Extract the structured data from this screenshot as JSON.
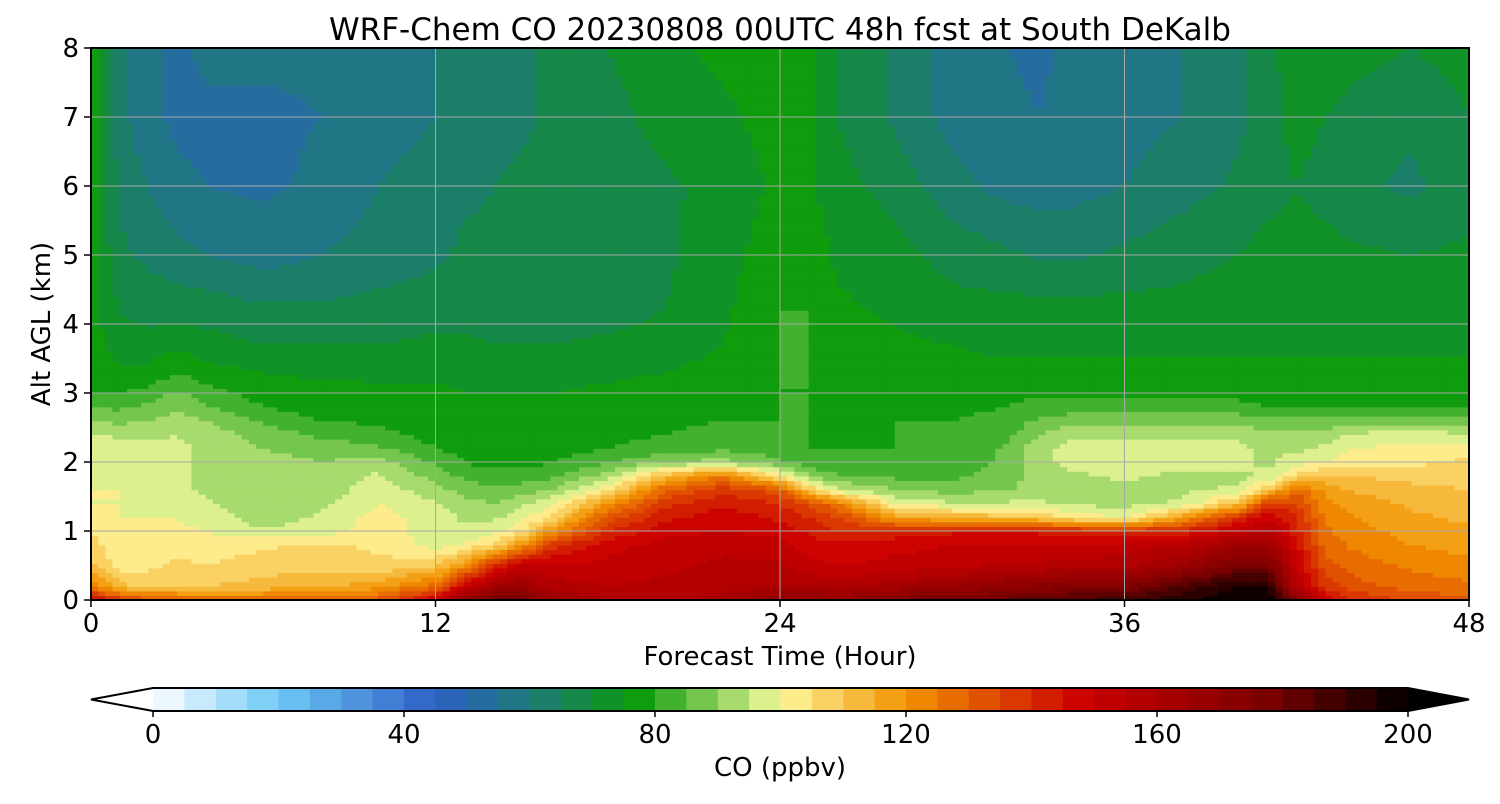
{
  "chart_data": {
    "type": "heatmap",
    "title": "WRF-Chem CO  20230808 00UTC 48h fcst at South DeKalb",
    "xlabel": "Forecast Time (Hour)",
    "ylabel": "Alt AGL (km)",
    "xlim": [
      0,
      48
    ],
    "ylim": [
      0,
      8
    ],
    "xticks": [
      "0",
      "12",
      "24",
      "36",
      "48"
    ],
    "yticks": [
      "0",
      "1",
      "2",
      "3",
      "4",
      "5",
      "6",
      "7",
      "8"
    ],
    "grid": true,
    "colorbar": {
      "label": "CO  (ppbv)",
      "range": [
        0,
        200
      ],
      "step": 5,
      "ticks": [
        "0",
        "40",
        "80",
        "120",
        "160",
        "200"
      ],
      "extend": "both",
      "stops": [
        {
          "v": 0,
          "c": "#ffffff"
        },
        {
          "v": 20,
          "c": "#6ec8f6"
        },
        {
          "v": 45,
          "c": "#2c5fc4"
        },
        {
          "v": 60,
          "c": "#1f7a7a"
        },
        {
          "v": 77,
          "c": "#0a9a0a"
        },
        {
          "v": 97,
          "c": "#d6ee8a"
        },
        {
          "v": 100,
          "c": "#fff7a0"
        },
        {
          "v": 120,
          "c": "#f29400"
        },
        {
          "v": 148,
          "c": "#cc0000"
        },
        {
          "v": 178,
          "c": "#7a0000"
        },
        {
          "v": 200,
          "c": "#000000"
        }
      ]
    },
    "x_hours": [
      0,
      1,
      2,
      3,
      4,
      6,
      8,
      10,
      12,
      13,
      14,
      15,
      16,
      18,
      20,
      22,
      24,
      25,
      26,
      28,
      30,
      32,
      33,
      34,
      36,
      38,
      40,
      41,
      42,
      43,
      44,
      46,
      48
    ],
    "z_km": [
      0,
      0.2,
      0.5,
      0.8,
      1.0,
      1.2,
      1.4,
      1.6,
      1.8,
      2.0,
      2.2,
      2.4,
      2.6,
      2.8,
      3.0,
      3.3,
      3.7,
      4.2,
      5.0,
      6.0,
      7.0,
      8.0
    ],
    "profile_breakpoints_km": {
      "boundary_layer_top": [
        2.5,
        2.5,
        2.6,
        2.7,
        2.8,
        2.6,
        2.3,
        2.0,
        1.8,
        1.7,
        1.6,
        1.5,
        1.6,
        1.9,
        2.0,
        1.9,
        1.7,
        1.6,
        1.5,
        1.3,
        1.3,
        1.3,
        1.3,
        1.2,
        1.1,
        1.1,
        1.3,
        1.5,
        1.7,
        1.9,
        2.0,
        2.1,
        2.2
      ],
      "polluted_layer_top": [
        0.0,
        0.0,
        0.0,
        0.0,
        0.0,
        0.0,
        0.0,
        0.0,
        0.2,
        0.35,
        0.5,
        0.65,
        1.0,
        1.6,
        1.9,
        1.95,
        1.75,
        1.6,
        1.55,
        1.3,
        1.3,
        1.25,
        1.2,
        1.15,
        1.05,
        1.0,
        1.2,
        1.5,
        1.7,
        1.9,
        2.0,
        2.1,
        2.2
      ]
    },
    "values_ppbv": [
      [
        150,
        138,
        132,
        130,
        128,
        128,
        130,
        132,
        150,
        172,
        180,
        178,
        168,
        160,
        158,
        162,
        170,
        172,
        170,
        176,
        180,
        182,
        184,
        186,
        188,
        194,
        200,
        200,
        176,
        150,
        140,
        134,
        132
      ],
      [
        126,
        112,
        108,
        110,
        110,
        112,
        114,
        118,
        128,
        150,
        162,
        166,
        158,
        155,
        156,
        158,
        160,
        160,
        158,
        162,
        166,
        170,
        172,
        174,
        176,
        186,
        196,
        194,
        156,
        138,
        132,
        128,
        126
      ],
      [
        112,
        102,
        104,
        106,
        105,
        108,
        108,
        106,
        110,
        120,
        140,
        152,
        150,
        152,
        154,
        156,
        156,
        152,
        150,
        152,
        154,
        156,
        156,
        158,
        158,
        166,
        178,
        178,
        150,
        132,
        128,
        124,
        122
      ],
      [
        108,
        100,
        102,
        104,
        102,
        104,
        106,
        104,
        98,
        100,
        106,
        120,
        138,
        148,
        152,
        154,
        152,
        148,
        146,
        148,
        150,
        150,
        150,
        150,
        152,
        156,
        164,
        164,
        146,
        128,
        124,
        120,
        118
      ],
      [
        104,
        100,
        100,
        101,
        100,
        96,
        98,
        102,
        98,
        96,
        98,
        104,
        120,
        140,
        148,
        150,
        148,
        144,
        140,
        142,
        144,
        144,
        144,
        142,
        140,
        142,
        152,
        156,
        142,
        126,
        122,
        118,
        116
      ],
      [
        102,
        100,
        100,
        100,
        98,
        92,
        96,
        102,
        98,
        94,
        94,
        98,
        106,
        132,
        144,
        148,
        144,
        140,
        136,
        118,
        114,
        112,
        110,
        104,
        100,
        118,
        140,
        150,
        140,
        124,
        120,
        116,
        114
      ],
      [
        100,
        100,
        99,
        98,
        96,
        92,
        94,
        100,
        96,
        92,
        90,
        94,
        98,
        120,
        138,
        144,
        140,
        134,
        126,
        100,
        96,
        96,
        96,
        94,
        93,
        96,
        112,
        138,
        136,
        122,
        118,
        114,
        112
      ],
      [
        100,
        100,
        98,
        96,
        94,
        92,
        92,
        98,
        92,
        88,
        86,
        88,
        90,
        104,
        130,
        138,
        132,
        110,
        96,
        90,
        88,
        90,
        92,
        92,
        92,
        94,
        96,
        110,
        128,
        118,
        114,
        112,
        110
      ],
      [
        100,
        99,
        97,
        96,
        94,
        92,
        92,
        96,
        88,
        84,
        82,
        82,
        84,
        92,
        112,
        126,
        104,
        90,
        86,
        84,
        84,
        88,
        92,
        94,
        96,
        94,
        94,
        96,
        106,
        112,
        110,
        108,
        108
      ],
      [
        100,
        98,
        96,
        96,
        94,
        92,
        90,
        92,
        84,
        80,
        78,
        78,
        80,
        84,
        90,
        92,
        86,
        82,
        80,
        80,
        82,
        86,
        94,
        96,
        98,
        96,
        96,
        94,
        98,
        100,
        104,
        104,
        106
      ],
      [
        99,
        97,
        96,
        96,
        94,
        90,
        88,
        86,
        80,
        78,
        77,
        76,
        78,
        80,
        82,
        84,
        82,
        80,
        80,
        80,
        82,
        86,
        94,
        96,
        98,
        96,
        96,
        94,
        94,
        96,
        100,
        102,
        102
      ],
      [
        96,
        94,
        94,
        95,
        93,
        88,
        84,
        82,
        78,
        77,
        76,
        76,
        77,
        79,
        80,
        82,
        80,
        80,
        79,
        80,
        82,
        84,
        90,
        94,
        94,
        94,
        94,
        92,
        92,
        92,
        96,
        98,
        96
      ],
      [
        90,
        89,
        90,
        92,
        90,
        84,
        80,
        79,
        77,
        76,
        76,
        76,
        77,
        78,
        79,
        80,
        80,
        80,
        79,
        80,
        80,
        82,
        86,
        88,
        88,
        88,
        88,
        86,
        86,
        86,
        88,
        88,
        86
      ],
      [
        85,
        84,
        86,
        90,
        86,
        80,
        78,
        77,
        76,
        76,
        76,
        76,
        76,
        77,
        78,
        79,
        80,
        80,
        78,
        79,
        79,
        80,
        82,
        82,
        82,
        82,
        82,
        80,
        80,
        80,
        80,
        80,
        80
      ],
      [
        80,
        80,
        82,
        86,
        82,
        78,
        77,
        76,
        76,
        75,
        75,
        75,
        75,
        76,
        77,
        78,
        80,
        80,
        78,
        78,
        78,
        79,
        79,
        79,
        78,
        78,
        78,
        78,
        78,
        78,
        78,
        78,
        78
      ],
      [
        78,
        76,
        76,
        80,
        77,
        75,
        74,
        74,
        74,
        74,
        73,
        73,
        73,
        74,
        75,
        77,
        80,
        80,
        78,
        77,
        76,
        76,
        76,
        76,
        76,
        76,
        76,
        76,
        76,
        76,
        76,
        76,
        76
      ],
      [
        77,
        73,
        72,
        74,
        72,
        70,
        70,
        70,
        71,
        71,
        70,
        70,
        70,
        71,
        72,
        75,
        80,
        80,
        78,
        76,
        75,
        74,
        74,
        74,
        74,
        74,
        74,
        74,
        74,
        74,
        74,
        74,
        74
      ],
      [
        77,
        70,
        68,
        68,
        68,
        66,
        66,
        67,
        68,
        68,
        68,
        67,
        67,
        68,
        70,
        74,
        80,
        80,
        76,
        74,
        72,
        72,
        72,
        72,
        72,
        72,
        73,
        73,
        73,
        73,
        73,
        73,
        73
      ],
      [
        77,
        66,
        64,
        62,
        60,
        58,
        60,
        62,
        64,
        66,
        66,
        66,
        66,
        67,
        69,
        73,
        78,
        78,
        74,
        72,
        68,
        66,
        64,
        64,
        66,
        68,
        70,
        72,
        72,
        72,
        71,
        70,
        71
      ],
      [
        77,
        64,
        60,
        56,
        55,
        54,
        56,
        60,
        62,
        64,
        65,
        66,
        66,
        67,
        69,
        72,
        76,
        76,
        72,
        68,
        62,
        58,
        58,
        58,
        60,
        63,
        66,
        68,
        70,
        68,
        66,
        64,
        68
      ],
      [
        78,
        62,
        56,
        54,
        54,
        54,
        55,
        58,
        60,
        62,
        63,
        64,
        66,
        68,
        72,
        74,
        77,
        76,
        70,
        64,
        58,
        56,
        55,
        56,
        58,
        60,
        64,
        68,
        72,
        70,
        68,
        66,
        70
      ],
      [
        78,
        62,
        56,
        54,
        56,
        56,
        56,
        58,
        60,
        62,
        62,
        64,
        66,
        70,
        74,
        76,
        78,
        76,
        70,
        64,
        58,
        55,
        54,
        56,
        58,
        60,
        64,
        68,
        74,
        74,
        72,
        70,
        72
      ]
    ]
  }
}
